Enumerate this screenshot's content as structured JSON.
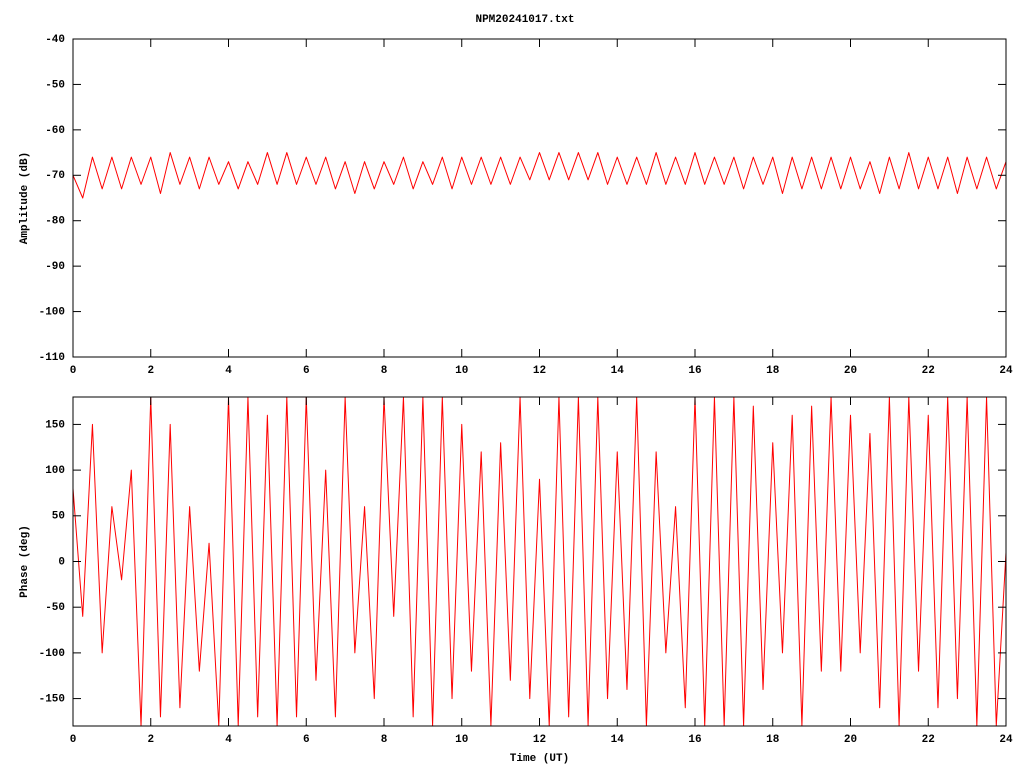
{
  "chart_data": [
    {
      "type": "line",
      "title": "NPM20241017.txt",
      "ylabel": "Amplitude (dB)",
      "xlim": [
        0,
        24
      ],
      "xticks": [
        0,
        2,
        4,
        6,
        8,
        10,
        12,
        14,
        16,
        18,
        20,
        22,
        24
      ],
      "ylim": [
        -110,
        -40
      ],
      "yticks": [
        -110,
        -100,
        -90,
        -80,
        -70,
        -60,
        -50,
        -40
      ],
      "series": [
        {
          "color": "#ff0000",
          "x": [
            0,
            0.25,
            0.5,
            0.75,
            1,
            1.25,
            1.5,
            1.75,
            2,
            2.25,
            2.5,
            2.75,
            3,
            3.25,
            3.5,
            3.75,
            4,
            4.25,
            4.5,
            4.75,
            5,
            5.25,
            5.5,
            5.75,
            6,
            6.25,
            6.5,
            6.75,
            7,
            7.25,
            7.5,
            7.75,
            8,
            8.25,
            8.5,
            8.75,
            9,
            9.25,
            9.5,
            9.75,
            10,
            10.25,
            10.5,
            10.75,
            11,
            11.25,
            11.5,
            11.75,
            12,
            12.25,
            12.5,
            12.75,
            13,
            13.25,
            13.5,
            13.75,
            14,
            14.25,
            14.5,
            14.75,
            15,
            15.25,
            15.5,
            15.75,
            16,
            16.25,
            16.5,
            16.75,
            17,
            17.25,
            17.5,
            17.75,
            18,
            18.25,
            18.5,
            18.75,
            19,
            19.25,
            19.5,
            19.75,
            20,
            20.25,
            20.5,
            20.75,
            21,
            21.25,
            21.5,
            21.75,
            22,
            22.25,
            22.5,
            22.75,
            23,
            23.25,
            23.5,
            23.75,
            24
          ],
          "values": [
            -70,
            -75,
            -66,
            -73,
            -66,
            -73,
            -66,
            -72,
            -66,
            -74,
            -65,
            -72,
            -66,
            -73,
            -66,
            -72,
            -67,
            -73,
            -67,
            -72,
            -65,
            -72,
            -65,
            -72,
            -66,
            -72,
            -66,
            -73,
            -67,
            -74,
            -67,
            -73,
            -67,
            -72,
            -66,
            -73,
            -67,
            -72,
            -66,
            -73,
            -66,
            -72,
            -66,
            -72,
            -66,
            -72,
            -66,
            -71,
            -65,
            -71,
            -65,
            -71,
            -65,
            -71,
            -65,
            -72,
            -66,
            -72,
            -66,
            -72,
            -65,
            -72,
            -66,
            -72,
            -65,
            -72,
            -66,
            -72,
            -66,
            -73,
            -66,
            -72,
            -66,
            -74,
            -66,
            -73,
            -66,
            -73,
            -66,
            -73,
            -66,
            -73,
            -67,
            -74,
            -66,
            -73,
            -65,
            -73,
            -66,
            -73,
            -66,
            -74,
            -66,
            -73,
            -66,
            -73,
            -67
          ]
        }
      ]
    },
    {
      "type": "line",
      "xlabel": "Time (UT)",
      "ylabel": "Phase (deg)",
      "xlim": [
        0,
        24
      ],
      "xticks": [
        0,
        2,
        4,
        6,
        8,
        10,
        12,
        14,
        16,
        18,
        20,
        22,
        24
      ],
      "ylim": [
        -180,
        180
      ],
      "yticks": [
        -150,
        -100,
        -50,
        0,
        50,
        100,
        150
      ],
      "series": [
        {
          "color": "#ff0000",
          "x": [
            0,
            0.25,
            0.5,
            0.75,
            1,
            1.25,
            1.5,
            1.75,
            2,
            2.25,
            2.5,
            2.75,
            3,
            3.25,
            3.5,
            3.75,
            4,
            4.25,
            4.5,
            4.75,
            5,
            5.25,
            5.5,
            5.75,
            6,
            6.25,
            6.5,
            6.75,
            7,
            7.25,
            7.5,
            7.75,
            8,
            8.25,
            8.5,
            8.75,
            9,
            9.25,
            9.5,
            9.75,
            10,
            10.25,
            10.5,
            10.75,
            11,
            11.25,
            11.5,
            11.75,
            12,
            12.25,
            12.5,
            12.75,
            13,
            13.25,
            13.5,
            13.75,
            14,
            14.25,
            14.5,
            14.75,
            15,
            15.25,
            15.5,
            15.75,
            16,
            16.25,
            16.5,
            16.75,
            17,
            17.25,
            17.5,
            17.75,
            18,
            18.25,
            18.5,
            18.75,
            19,
            19.25,
            19.5,
            19.75,
            20,
            20.25,
            20.5,
            20.75,
            21,
            21.25,
            21.5,
            21.75,
            22,
            22.25,
            22.5,
            22.75,
            23,
            23.25,
            23.5,
            23.75,
            24
          ],
          "values": [
            80,
            -60,
            150,
            -100,
            60,
            -20,
            100,
            -180,
            180,
            -170,
            150,
            -160,
            60,
            -120,
            20,
            -180,
            180,
            -180,
            180,
            -170,
            160,
            -180,
            180,
            -170,
            180,
            -130,
            100,
            -170,
            180,
            -100,
            60,
            -150,
            180,
            -60,
            180,
            -170,
            180,
            -180,
            180,
            -150,
            150,
            -120,
            120,
            -180,
            130,
            -130,
            180,
            -150,
            90,
            -180,
            180,
            -170,
            180,
            -180,
            180,
            -150,
            120,
            -140,
            180,
            -180,
            120,
            -100,
            60,
            -160,
            180,
            -180,
            180,
            -180,
            180,
            -180,
            170,
            -140,
            130,
            -100,
            160,
            -180,
            170,
            -120,
            180,
            -120,
            160,
            -100,
            140,
            -160,
            180,
            -180,
            180,
            -120,
            160,
            -160,
            180,
            -150,
            180,
            -180,
            180,
            -180,
            10
          ]
        }
      ]
    }
  ]
}
